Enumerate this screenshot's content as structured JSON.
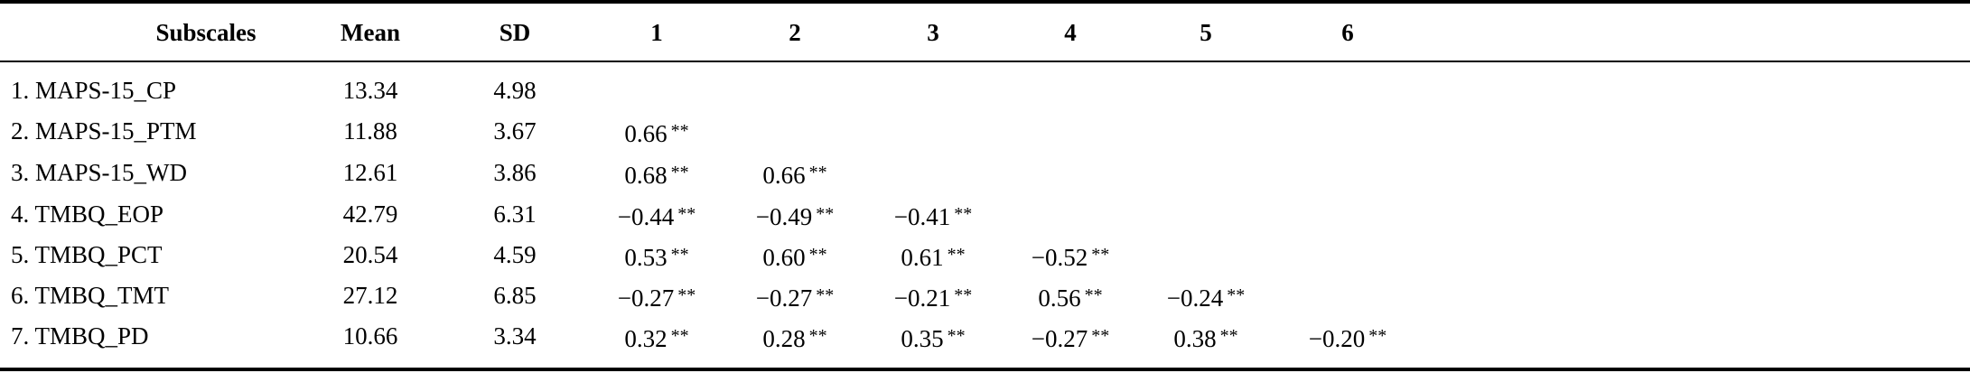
{
  "table": {
    "headers": [
      "Subscales",
      "Mean",
      "SD",
      "1",
      "2",
      "3",
      "4",
      "5",
      "6"
    ],
    "rows": [
      {
        "label": "1. MAPS-15_CP",
        "mean": "13.34",
        "sd": "4.98",
        "r": []
      },
      {
        "label": "2. MAPS-15_PTM",
        "mean": "11.88",
        "sd": "3.67",
        "r": [
          {
            "v": "0.66",
            "sig": "**"
          }
        ]
      },
      {
        "label": "3. MAPS-15_WD",
        "mean": "12.61",
        "sd": "3.86",
        "r": [
          {
            "v": "0.68",
            "sig": "**"
          },
          {
            "v": "0.66",
            "sig": "**"
          }
        ]
      },
      {
        "label": "4. TMBQ_EOP",
        "mean": "42.79",
        "sd": "6.31",
        "r": [
          {
            "v": "−0.44",
            "sig": "**"
          },
          {
            "v": "−0.49",
            "sig": "**"
          },
          {
            "v": "−0.41",
            "sig": "**"
          }
        ]
      },
      {
        "label": "5. TMBQ_PCT",
        "mean": "20.54",
        "sd": "4.59",
        "r": [
          {
            "v": "0.53",
            "sig": "**"
          },
          {
            "v": "0.60",
            "sig": "**"
          },
          {
            "v": "0.61",
            "sig": "**"
          },
          {
            "v": "−0.52",
            "sig": "**"
          }
        ]
      },
      {
        "label": "6. TMBQ_TMT",
        "mean": "27.12",
        "sd": "6.85",
        "r": [
          {
            "v": "−0.27",
            "sig": "**"
          },
          {
            "v": "−0.27",
            "sig": "**"
          },
          {
            "v": "−0.21",
            "sig": "**"
          },
          {
            "v": "0.56",
            "sig": "**"
          },
          {
            "v": "−0.24",
            "sig": "**"
          }
        ]
      },
      {
        "label": "7. TMBQ_PD",
        "mean": "10.66",
        "sd": "3.34",
        "r": [
          {
            "v": "0.32",
            "sig": "**"
          },
          {
            "v": "0.28",
            "sig": "**"
          },
          {
            "v": "0.35",
            "sig": "**"
          },
          {
            "v": "−0.27",
            "sig": "**"
          },
          {
            "v": "0.38",
            "sig": "**"
          },
          {
            "v": "−0.20",
            "sig": "**"
          }
        ]
      }
    ]
  }
}
